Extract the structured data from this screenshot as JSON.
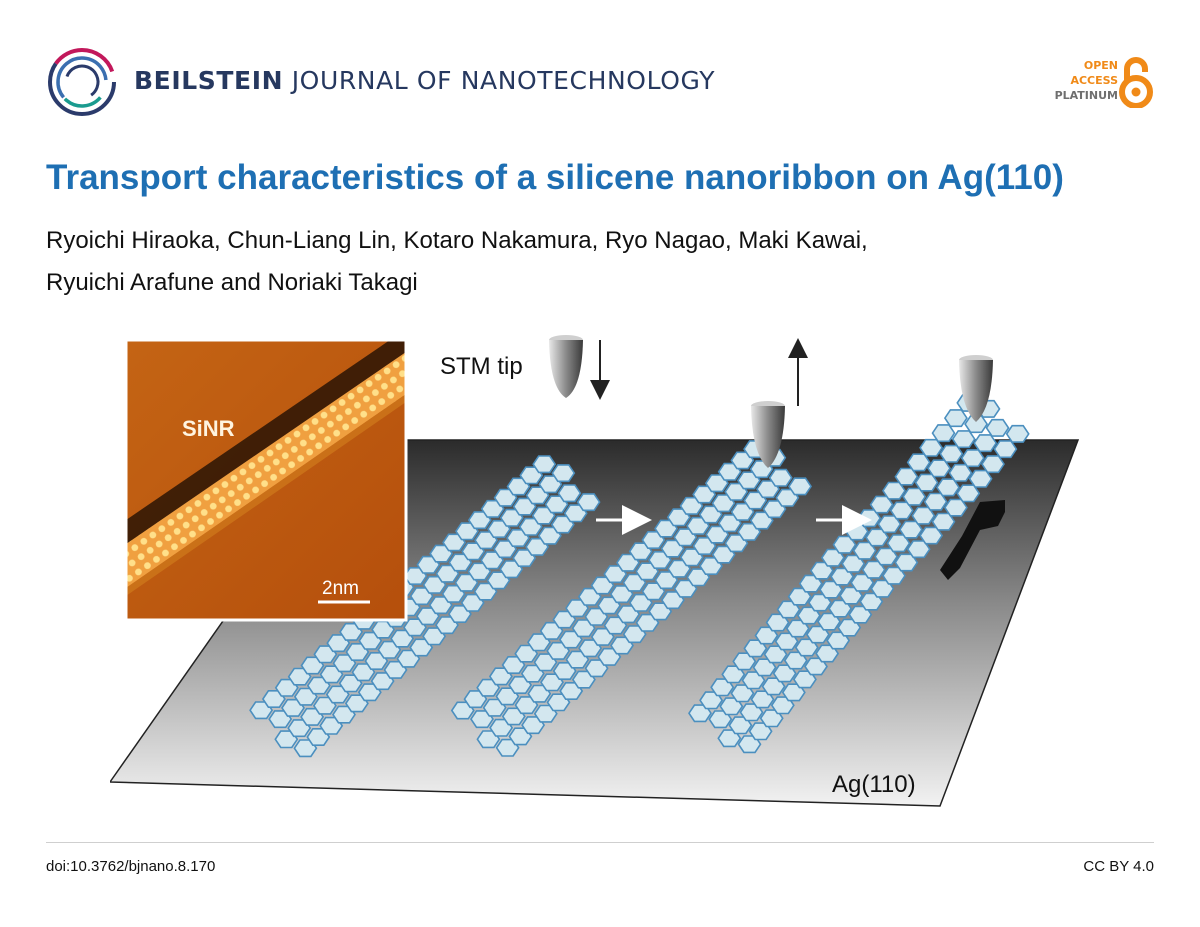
{
  "header": {
    "journal_name_bold": "BEILSTEIN",
    "journal_name_rest": "JOURNAL OF NANOTECHNOLOGY",
    "logo_icon": "beilstein-ring-logo",
    "badge": {
      "line1": "OPEN",
      "line2": "ACCESS",
      "line3": "PLATINUM",
      "icon": "open-access-lock-icon"
    }
  },
  "article": {
    "title": "Transport characteristics of a silicene nanoribbon on Ag(110)",
    "authors_line1": "Ryoichi Hiraoka, Chun-Liang Lin, Kotaro Nakamura, Ryo Nagao, Maki Kawai,",
    "authors_line2": "Ryuichi Arafune and Noriaki Takagi"
  },
  "figure": {
    "inset_label": "SiNR",
    "scale_bar_label": "2nm",
    "tip_label": "STM tip",
    "surface_label": "Ag(110)"
  },
  "footer": {
    "doi": "doi:10.3762/bjnano.8.170",
    "license": "CC BY 4.0"
  },
  "colors": {
    "title": "#1e6fb3",
    "journal": "#26385f",
    "oa_orange": "#f08a18",
    "hex_fill": "#d3e7ef",
    "hex_stroke": "#4b8fbf",
    "stm_orange": "#c0590f"
  }
}
